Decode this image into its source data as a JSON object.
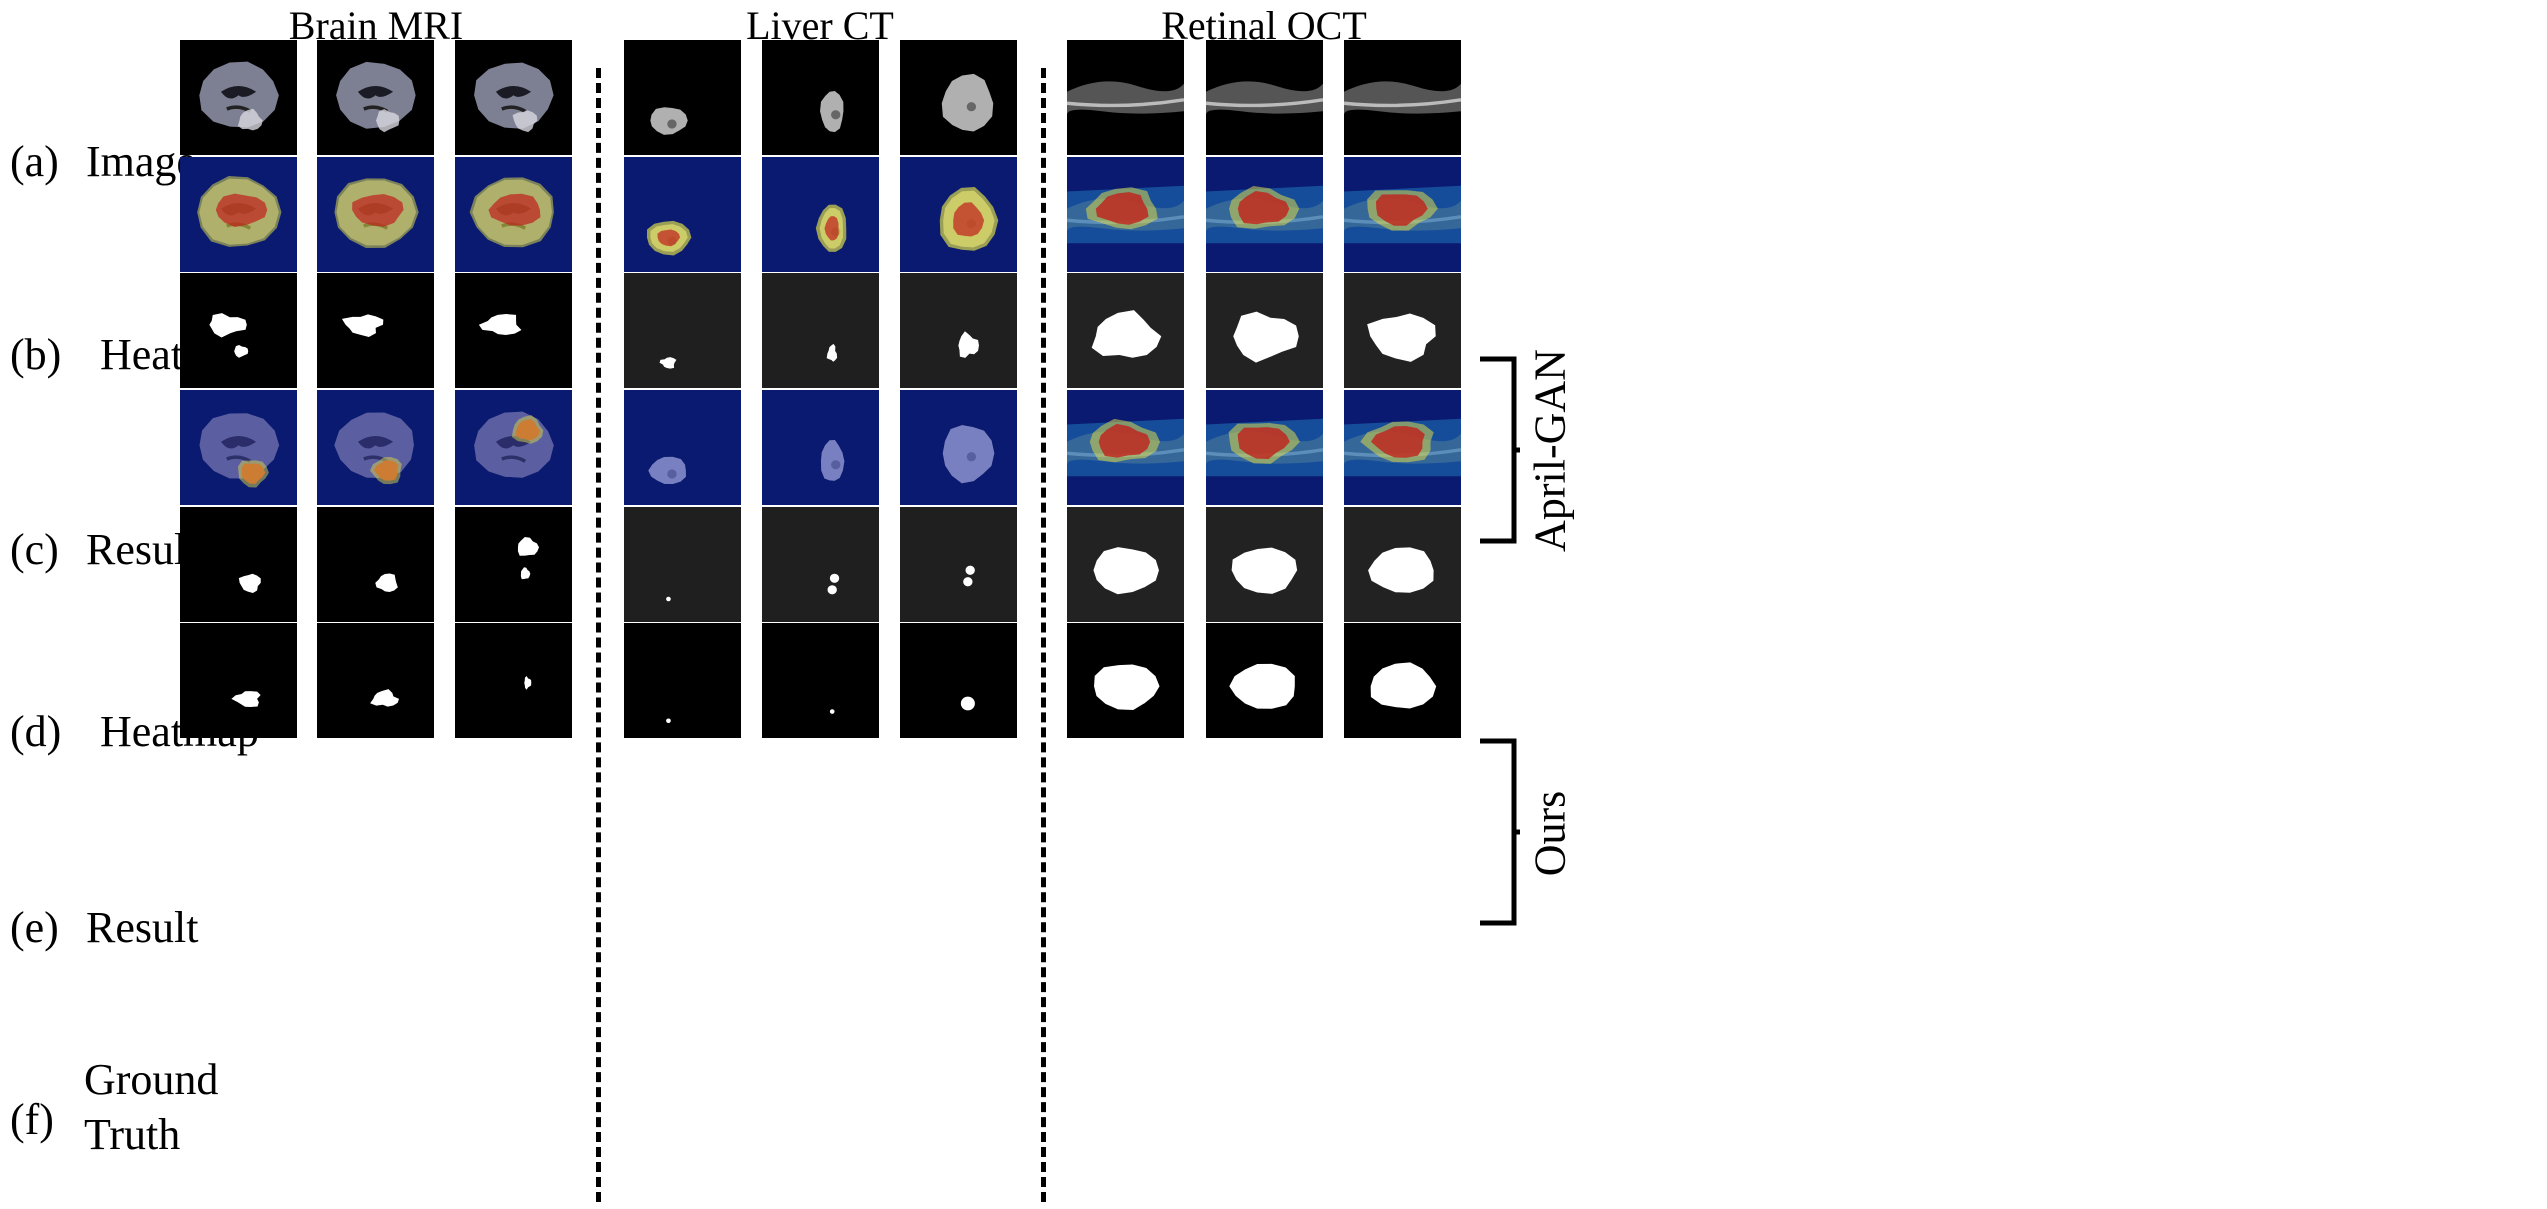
{
  "groups": [
    {
      "title": "Brain MRI"
    },
    {
      "title": "Liver CT"
    },
    {
      "title": "Retinal OCT"
    }
  ],
  "rows": [
    {
      "tag": "(a)",
      "label": "Image",
      "kind": "image"
    },
    {
      "tag": "(b)",
      "label": "Heatmap",
      "kind": "heatmap-april"
    },
    {
      "tag": "(c)",
      "label": "Result",
      "kind": "result-april"
    },
    {
      "tag": "(d)",
      "label": "Heatmap",
      "kind": "heatmap-ours"
    },
    {
      "tag": "(e)",
      "label": "Result",
      "kind": "result-ours"
    },
    {
      "tag": "(f)",
      "label_line1": "Ground",
      "label_line2": "Truth",
      "kind": "gt"
    }
  ],
  "brackets": [
    {
      "label": "April-GAN",
      "rows": [
        "b",
        "c"
      ]
    },
    {
      "label": "Ours",
      "rows": [
        "d",
        "e"
      ]
    }
  ],
  "colors": {
    "background": "#ffffff",
    "panel_black": "#000000",
    "panel_gray": "#1f1f1f",
    "heat_bg": "#0a1a70",
    "heat_red": "#c0201c",
    "heat_yellow": "#d9d84a",
    "mask": "#ffffff"
  }
}
